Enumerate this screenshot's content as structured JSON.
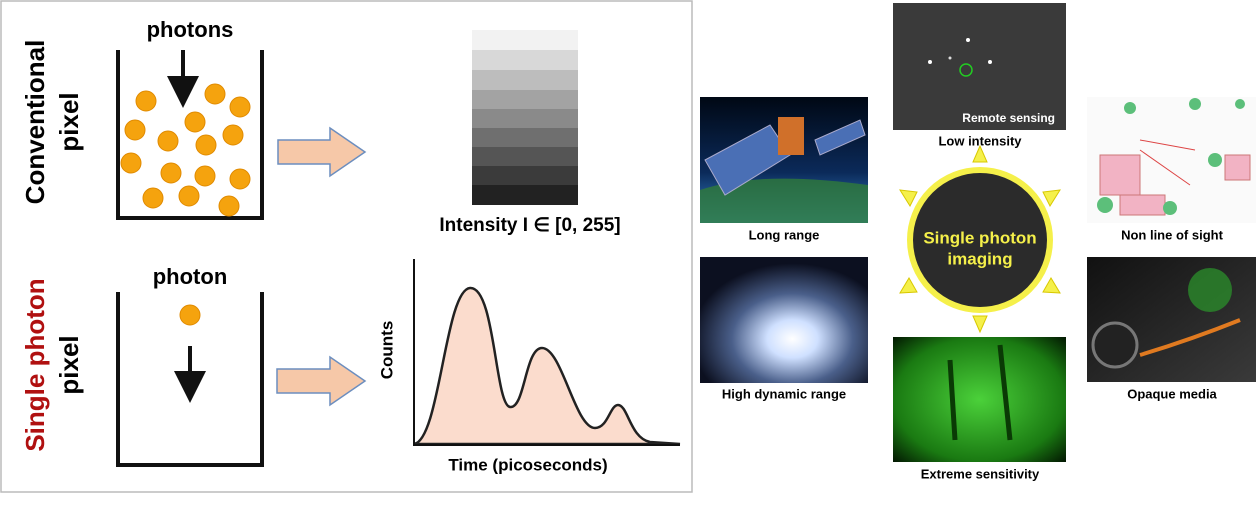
{
  "conventional": {
    "label_lines": [
      "Conventional",
      "pixel"
    ],
    "bucket_label": "photons",
    "output_label": "Intensity I ∈ [0, 255]"
  },
  "single_photon": {
    "label_lines": [
      "Single photon",
      "pixel"
    ],
    "bucket_label": "photon",
    "y_axis_label": "Counts",
    "x_axis_label": "Time (picoseconds)"
  },
  "center": {
    "lines": [
      "Single photon",
      "imaging"
    ]
  },
  "applications": [
    {
      "label": "Low intensity",
      "caption": "Remote sensing"
    },
    {
      "label": "Long range"
    },
    {
      "label": "Non line of sight"
    },
    {
      "label": "High dynamic range"
    },
    {
      "label": "Opaque media"
    },
    {
      "label": "Extreme sensitivity"
    }
  ]
}
